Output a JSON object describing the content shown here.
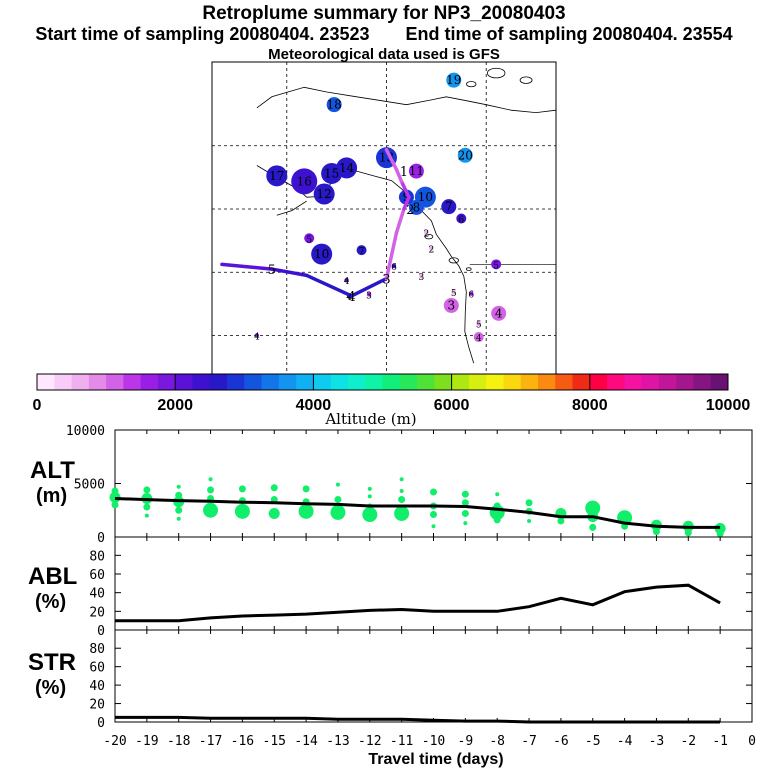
{
  "header": {
    "title": "Retroplume summary for NP3_20080403",
    "start_label": "Start time of sampling 20080404. 23523",
    "end_label": "End time of sampling 20080404. 23554",
    "met_label": "Meteorological data used is GFS"
  },
  "colorbar": {
    "colors": [
      "#ffe8ff",
      "#f9ccf7",
      "#f0b0ef",
      "#e48ae7",
      "#d462e6",
      "#bb36e8",
      "#9a1fe6",
      "#7a18e0",
      "#5a12d8",
      "#3e10cf",
      "#2818c8",
      "#1a34d6",
      "#1455e0",
      "#1276e8",
      "#1294ef",
      "#10b0f2",
      "#0ecbf0",
      "#0ee2e6",
      "#0ef0cc",
      "#0ef4a6",
      "#10ee7c",
      "#26e85a",
      "#4fe238",
      "#7ee01c",
      "#aee812",
      "#d7ee10",
      "#f4f20e",
      "#fbd80e",
      "#fbb40e",
      "#fa8a10",
      "#f75a12",
      "#ef2a16",
      "#ff0044",
      "#ff0a7e",
      "#f512a2",
      "#de14a6",
      "#c2169a",
      "#a4168e",
      "#861482",
      "#6a1272"
    ],
    "ticks": [
      "0",
      "2000",
      "4000",
      "6000",
      "8000",
      "10000"
    ],
    "label": "Altitude (m)"
  },
  "map": {
    "markers": [
      {
        "label": "18",
        "lon": -150.5,
        "lat": 69.2,
        "size": 2,
        "alt": 3200
      },
      {
        "label": "19",
        "lon": -126.5,
        "lat": 72.3,
        "size": 2,
        "alt": 3700
      },
      {
        "label": "20",
        "lon": -124.2,
        "lat": 62.8,
        "size": 2,
        "alt": 3600
      },
      {
        "label": "13",
        "lon": -140.0,
        "lat": 62.5,
        "size": 3,
        "alt": 2800
      },
      {
        "label": "14",
        "lon": -148.0,
        "lat": 61.2,
        "size": 3,
        "alt": 2700
      },
      {
        "label": "15",
        "lon": -151.0,
        "lat": 60.5,
        "size": 3,
        "alt": 2500
      },
      {
        "label": "16",
        "lon": -156.5,
        "lat": 59.5,
        "size": 4,
        "alt": 2400
      },
      {
        "label": "17",
        "lon": -162.0,
        "lat": 60.2,
        "size": 3,
        "alt": 2600
      },
      {
        "label": "12",
        "lon": -152.5,
        "lat": 57.9,
        "size": 3,
        "alt": 2500
      },
      {
        "label": "11",
        "lon": -134.0,
        "lat": 60.8,
        "size": 2,
        "alt": 1700
      },
      {
        "label": "10",
        "lon": -132.2,
        "lat": 57.5,
        "size": 3,
        "alt": 3100
      },
      {
        "label": "9",
        "lon": -136.0,
        "lat": 57.5,
        "size": 2,
        "alt": 2900
      },
      {
        "label": "8",
        "lon": -134.0,
        "lat": 56.2,
        "size": 2,
        "alt": 3000
      },
      {
        "label": "7",
        "lon": -127.5,
        "lat": 56.3,
        "size": 2,
        "alt": 2700
      },
      {
        "label": "6",
        "lon": -125.0,
        "lat": 54.8,
        "size": 1,
        "alt": 2300
      },
      {
        "label": "5",
        "lon": -155.5,
        "lat": 52.3,
        "size": 1,
        "alt": 1900
      },
      {
        "label": "10",
        "lon": -153.0,
        "lat": 50.3,
        "size": 3,
        "alt": 2500
      },
      {
        "label": "7",
        "lon": -145.0,
        "lat": 50.8,
        "size": 1,
        "alt": 2500
      },
      {
        "label": "6",
        "lon": -138.5,
        "lat": 48.8,
        "size": 0,
        "alt": 2400
      },
      {
        "label": "2",
        "lon": -132.0,
        "lat": 53.0,
        "size": 0,
        "alt": 700
      },
      {
        "label": "2",
        "lon": -131.0,
        "lat": 51.0,
        "size": 0,
        "alt": 700
      },
      {
        "label": "3",
        "lon": -133.0,
        "lat": 47.5,
        "size": 0,
        "alt": 500
      },
      {
        "label": "5",
        "lon": -126.5,
        "lat": 45.5,
        "size": 0,
        "alt": 500
      },
      {
        "label": "3",
        "lon": -127.0,
        "lat": 43.8,
        "size": 2,
        "alt": 1200
      },
      {
        "label": "6",
        "lon": -123.0,
        "lat": 45.3,
        "size": 0,
        "alt": 1600
      },
      {
        "label": "5",
        "lon": -118.0,
        "lat": 49.0,
        "size": 1,
        "alt": 1900
      },
      {
        "label": "4",
        "lon": -117.5,
        "lat": 42.8,
        "size": 2,
        "alt": 1200
      },
      {
        "label": "5",
        "lon": -121.5,
        "lat": 41.5,
        "size": 0,
        "alt": 800
      },
      {
        "label": "4",
        "lon": -121.5,
        "lat": 39.8,
        "size": 1,
        "alt": 1200
      },
      {
        "label": "4",
        "lon": -148.0,
        "lat": 47.0,
        "size": 0,
        "alt": 2000
      },
      {
        "label": "4",
        "lon": -147.5,
        "lat": 45.0,
        "size": 0,
        "alt": 2000
      },
      {
        "label": "3",
        "lon": -143.5,
        "lat": 45.2,
        "size": 0,
        "alt": 1500
      },
      {
        "label": "4",
        "lon": -166.0,
        "lat": 40.0,
        "size": 0,
        "alt": 1800
      }
    ],
    "mean_path": {
      "lon": [
        -173.0,
        -163.0,
        -156.0,
        -147.0,
        -140.0,
        -138.0,
        -136.5,
        -135.5,
        -137.0,
        -138.0,
        -140.0
      ],
      "lat": [
        49.0,
        48.4,
        47.6,
        45.0,
        47.2,
        53.0,
        56.0,
        57.5,
        59.5,
        61.0,
        63.5
      ],
      "alt": [
        2200,
        2400,
        2600,
        2700,
        1000,
        1200,
        1300,
        1300,
        1200,
        1200,
        1200
      ]
    },
    "path_labels": [
      {
        "label": "5",
        "lon": -163.0,
        "lat": 48.4
      },
      {
        "label": "4",
        "lon": -147.0,
        "lat": 45.0
      },
      {
        "label": "3",
        "lon": -140.0,
        "lat": 47.2
      },
      {
        "label": "2",
        "lon": -135.2,
        "lat": 56.0
      },
      {
        "label": "1",
        "lon": -136.5,
        "lat": 60.8
      }
    ]
  },
  "chart_data": [
    {
      "type": "scatter",
      "title": "ALT (m)",
      "x": [
        -20,
        -19,
        -18,
        -17,
        -16,
        -15,
        -14,
        -13,
        -12,
        -11,
        -10,
        -9,
        -8,
        -7,
        -6,
        -5,
        -4,
        -3,
        -2,
        -1
      ],
      "mean_values": [
        3600,
        3500,
        3400,
        3350,
        3250,
        3200,
        3100,
        3050,
        2900,
        2900,
        2900,
        2850,
        2600,
        2300,
        1900,
        1900,
        1300,
        1000,
        900,
        900
      ],
      "points": [
        {
          "x": -20,
          "y": 4300,
          "s": 1
        },
        {
          "x": -20,
          "y": 3700,
          "s": 2
        },
        {
          "x": -20,
          "y": 3000,
          "s": 1
        },
        {
          "x": -19,
          "y": 4400,
          "s": 1
        },
        {
          "x": -19,
          "y": 3600,
          "s": 2
        },
        {
          "x": -19,
          "y": 2800,
          "s": 1
        },
        {
          "x": -19,
          "y": 2000,
          "s": 0
        },
        {
          "x": -18,
          "y": 4700,
          "s": 0
        },
        {
          "x": -18,
          "y": 3900,
          "s": 1
        },
        {
          "x": -18,
          "y": 3300,
          "s": 2
        },
        {
          "x": -18,
          "y": 2500,
          "s": 1
        },
        {
          "x": -18,
          "y": 1700,
          "s": 0
        },
        {
          "x": -17,
          "y": 5400,
          "s": 0
        },
        {
          "x": -17,
          "y": 4400,
          "s": 1
        },
        {
          "x": -17,
          "y": 3600,
          "s": 1
        },
        {
          "x": -17,
          "y": 2500,
          "s": 3
        },
        {
          "x": -16,
          "y": 4500,
          "s": 1
        },
        {
          "x": -16,
          "y": 3400,
          "s": 1
        },
        {
          "x": -16,
          "y": 2400,
          "s": 3
        },
        {
          "x": -15,
          "y": 4600,
          "s": 1
        },
        {
          "x": -15,
          "y": 3500,
          "s": 1
        },
        {
          "x": -15,
          "y": 2200,
          "s": 2
        },
        {
          "x": -14,
          "y": 4500,
          "s": 1
        },
        {
          "x": -14,
          "y": 3300,
          "s": 1
        },
        {
          "x": -14,
          "y": 2400,
          "s": 3
        },
        {
          "x": -13,
          "y": 4900,
          "s": 0
        },
        {
          "x": -13,
          "y": 3500,
          "s": 1
        },
        {
          "x": -13,
          "y": 2300,
          "s": 3
        },
        {
          "x": -12,
          "y": 4500,
          "s": 0
        },
        {
          "x": -12,
          "y": 3800,
          "s": 0
        },
        {
          "x": -12,
          "y": 2800,
          "s": 1
        },
        {
          "x": -12,
          "y": 2100,
          "s": 3
        },
        {
          "x": -11,
          "y": 5400,
          "s": 0
        },
        {
          "x": -11,
          "y": 4300,
          "s": 0
        },
        {
          "x": -11,
          "y": 3500,
          "s": 1
        },
        {
          "x": -11,
          "y": 2200,
          "s": 3
        },
        {
          "x": -10,
          "y": 4200,
          "s": 1
        },
        {
          "x": -10,
          "y": 2900,
          "s": 1
        },
        {
          "x": -10,
          "y": 2100,
          "s": 1
        },
        {
          "x": -10,
          "y": 1000,
          "s": 0
        },
        {
          "x": -9,
          "y": 4000,
          "s": 1
        },
        {
          "x": -9,
          "y": 3200,
          "s": 1
        },
        {
          "x": -9,
          "y": 2200,
          "s": 1
        },
        {
          "x": -9,
          "y": 1300,
          "s": 0
        },
        {
          "x": -8,
          "y": 4000,
          "s": 0
        },
        {
          "x": -8,
          "y": 2900,
          "s": 1
        },
        {
          "x": -8,
          "y": 2300,
          "s": 3
        },
        {
          "x": -8,
          "y": 1600,
          "s": 1
        },
        {
          "x": -7,
          "y": 3200,
          "s": 1
        },
        {
          "x": -7,
          "y": 2400,
          "s": 1
        },
        {
          "x": -7,
          "y": 1500,
          "s": 0
        },
        {
          "x": -6,
          "y": 2200,
          "s": 2
        },
        {
          "x": -6,
          "y": 1500,
          "s": 1
        },
        {
          "x": -5,
          "y": 2700,
          "s": 3
        },
        {
          "x": -5,
          "y": 1900,
          "s": 2
        },
        {
          "x": -5,
          "y": 900,
          "s": 1
        },
        {
          "x": -4,
          "y": 1800,
          "s": 3
        },
        {
          "x": -4,
          "y": 1000,
          "s": 1
        },
        {
          "x": -3,
          "y": 1100,
          "s": 2
        },
        {
          "x": -3,
          "y": 500,
          "s": 1
        },
        {
          "x": -2,
          "y": 1000,
          "s": 2
        },
        {
          "x": -2,
          "y": 400,
          "s": 1
        },
        {
          "x": -1,
          "y": 800,
          "s": 2
        },
        {
          "x": -1,
          "y": 300,
          "s": 1
        }
      ],
      "ylim": [
        0,
        10000
      ],
      "yticks": [
        "0",
        "5000",
        "10000"
      ],
      "ylabel": "ALT\n(m)",
      "marker_color": "#11ee6a"
    },
    {
      "type": "line",
      "title": "ABL (%)",
      "x": [
        -20,
        -19,
        -18,
        -17,
        -16,
        -15,
        -14,
        -13,
        -12,
        -11,
        -10,
        -9,
        -8,
        -7,
        -6,
        -5,
        -4,
        -3,
        -2,
        -1
      ],
      "values": [
        10,
        10,
        10,
        13,
        15,
        16,
        17,
        19,
        21,
        22,
        20,
        20,
        20,
        25,
        34,
        27,
        41,
        46,
        48,
        29
      ],
      "ylim": [
        0,
        90
      ],
      "yticks": [
        "0",
        "20",
        "40",
        "60",
        "80"
      ]
    },
    {
      "type": "line",
      "title": "STR (%)",
      "x": [
        -20,
        -19,
        -18,
        -17,
        -16,
        -15,
        -14,
        -13,
        -12,
        -11,
        -10,
        -9,
        -8,
        -7,
        -6,
        -5,
        -4,
        -3,
        -2,
        -1
      ],
      "values": [
        5,
        5,
        5,
        4,
        4,
        4,
        4,
        3,
        3,
        3,
        2,
        1,
        1,
        0,
        0,
        0,
        0,
        0,
        0,
        0
      ],
      "ylim": [
        0,
        90
      ],
      "yticks": [
        "0",
        "20",
        "40",
        "60",
        "80"
      ]
    }
  ],
  "panels": {
    "alt_label_1": "ALT",
    "alt_label_2": "(m)",
    "abl_label_1": "ABL",
    "abl_label_2": "(%)",
    "str_label_1": "STR",
    "str_label_2": "(%)",
    "xticks": [
      "-20",
      "-19",
      "-18",
      "-17",
      "-16",
      "-15",
      "-14",
      "-13",
      "-12",
      "-11",
      "-10",
      "-9",
      "-8",
      "-7",
      "-6",
      "-5",
      "-4",
      "-3",
      "-2",
      "-1",
      "0"
    ],
    "xlabel": "Travel time (days)"
  }
}
